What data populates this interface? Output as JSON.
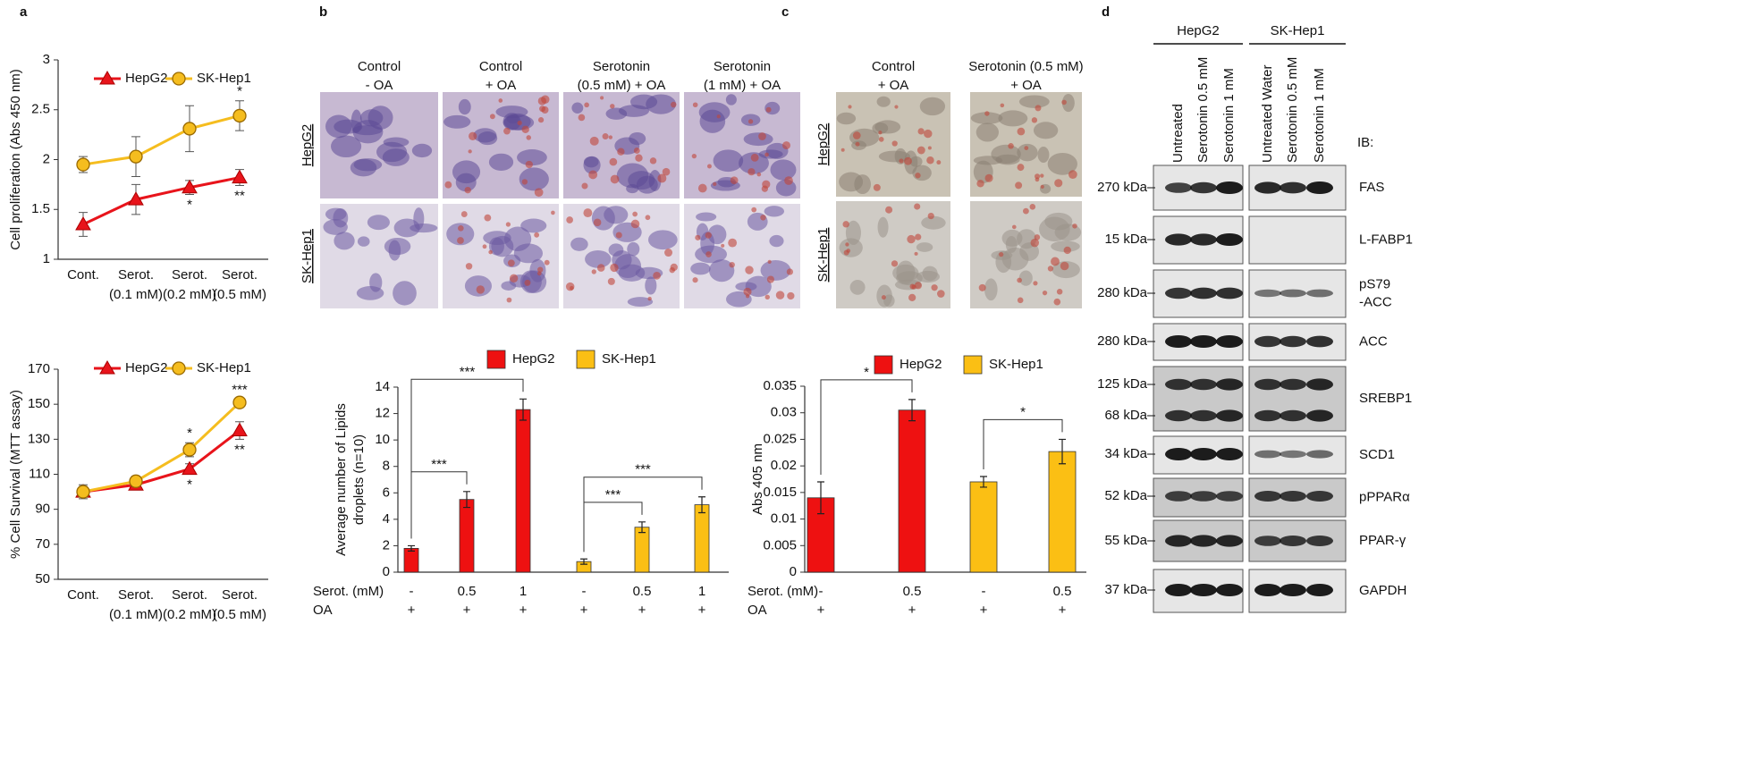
{
  "panel_labels": [
    "a",
    "b",
    "c",
    "d"
  ],
  "chart_data": [
    {
      "type": "line",
      "ylabel": [
        "Cell proliferation (Abs 450 nm)"
      ],
      "categories": [
        "Cont.",
        "Serot.",
        "Serot.",
        "Serot."
      ],
      "category_sublabels": [
        null,
        "(0.1 mM)",
        "(0.2 mM)",
        "(0.5 mM)"
      ],
      "series": [
        {
          "name": "HepG2",
          "color": "#e8141b",
          "marker": "triangle",
          "values": [
            1.35,
            1.6,
            1.72,
            1.82
          ],
          "errors": [
            0.12,
            0.15,
            0.07,
            0.08
          ]
        },
        {
          "name": "SK-Hep1",
          "color": "#f5bd1f",
          "marker": "circle",
          "values": [
            1.95,
            2.03,
            2.31,
            2.44
          ],
          "errors": [
            0.08,
            0.2,
            0.23,
            0.15
          ]
        }
      ],
      "ylim": [
        1,
        3
      ],
      "yticks": [
        1,
        1.5,
        2,
        2.5,
        3
      ],
      "annotations": [
        {
          "text": "*",
          "series": 1,
          "index": 3,
          "side": "above"
        },
        {
          "text": "*",
          "series": 0,
          "index": 2,
          "side": "below"
        },
        {
          "text": "**",
          "series": 0,
          "index": 3,
          "side": "below"
        }
      ]
    },
    {
      "type": "line",
      "ylabel": [
        "% Cell Survival (MTT assay)"
      ],
      "categories": [
        "Cont.",
        "Serot.",
        "Serot.",
        "Serot."
      ],
      "category_sublabels": [
        null,
        "(0.1 mM)",
        "(0.2 mM)",
        "(0.5 mM)"
      ],
      "series": [
        {
          "name": "HepG2",
          "color": "#e8141b",
          "marker": "triangle",
          "values": [
            100,
            104,
            113,
            135
          ],
          "errors": [
            3,
            2,
            3,
            5
          ]
        },
        {
          "name": "SK-Hep1",
          "color": "#f5bd1f",
          "marker": "circle",
          "values": [
            100,
            106,
            124,
            151
          ],
          "errors": [
            4,
            3,
            4,
            2
          ]
        }
      ],
      "ylim": [
        50,
        170
      ],
      "yticks": [
        50,
        70,
        90,
        110,
        130,
        150,
        170
      ],
      "annotations": [
        {
          "text": "*",
          "series": 1,
          "index": 2,
          "side": "above"
        },
        {
          "text": "***",
          "series": 1,
          "index": 3,
          "side": "above"
        },
        {
          "text": "*",
          "series": 0,
          "index": 2,
          "side": "below"
        },
        {
          "text": "**",
          "series": 0,
          "index": 3,
          "side": "below"
        }
      ]
    },
    {
      "type": "bar",
      "ylabel": [
        "Average number of Lipids",
        "droplets (n=10)"
      ],
      "row_labels": [
        "Serot. (mM)",
        "OA"
      ],
      "categories": [
        "-",
        "0.5",
        "1",
        "-",
        "0.5",
        "1"
      ],
      "second_row": [
        "+",
        "+",
        "+",
        "+",
        "+",
        "+"
      ],
      "series": [
        {
          "name": "HepG2",
          "color": "#ee1111",
          "values": [
            1.8,
            5.5,
            12.3,
            null,
            null,
            null
          ],
          "errors": [
            0.2,
            0.6,
            0.8,
            null,
            null,
            null
          ]
        },
        {
          "name": "SK-Hep1",
          "color": "#fbbf14",
          "values": [
            null,
            null,
            null,
            0.8,
            3.4,
            5.1
          ],
          "errors": [
            null,
            null,
            null,
            0.2,
            0.4,
            0.6
          ]
        }
      ],
      "ylim": [
        0,
        14
      ],
      "yticks": [
        0,
        2,
        4,
        6,
        8,
        10,
        12,
        14
      ],
      "brackets": [
        {
          "text": "***",
          "from": 0,
          "to": 1
        },
        {
          "text": "***",
          "from": 0,
          "to": 2
        },
        {
          "text": "***",
          "from": 3,
          "to": 4
        },
        {
          "text": "***",
          "from": 3,
          "to": 5
        }
      ]
    },
    {
      "type": "bar",
      "ylabel": [
        "Abs 405 nm"
      ],
      "row_labels": [
        "Serot. (mM)",
        "OA"
      ],
      "categories": [
        "-",
        "0.5",
        "-",
        "0.5"
      ],
      "second_row": [
        "+",
        "+",
        "+",
        "+"
      ],
      "series": [
        {
          "name": "HepG2",
          "color": "#ee1111",
          "values": [
            0.014,
            0.0305,
            null,
            null
          ],
          "errors": [
            0.003,
            0.002,
            null,
            null
          ]
        },
        {
          "name": "SK-Hep1",
          "color": "#fbbf14",
          "values": [
            null,
            null,
            0.017,
            0.0227
          ],
          "errors": [
            null,
            null,
            0.001,
            0.0023
          ]
        }
      ],
      "ylim": [
        0,
        0.035
      ],
      "yticks": [
        0,
        0.005,
        0.01,
        0.015,
        0.02,
        0.025,
        0.03,
        0.035
      ],
      "brackets": [
        {
          "text": "*",
          "from": 0,
          "to": 1
        },
        {
          "text": "*",
          "from": 2,
          "to": 3
        }
      ]
    }
  ],
  "micrographs_b": {
    "columns": [
      [
        "Control",
        "- OA"
      ],
      [
        "Control",
        "+ OA"
      ],
      [
        "Serotonin",
        "(0.5 mM) + OA"
      ],
      [
        "Serotonin",
        "(1 mM) + OA"
      ]
    ],
    "rows": [
      "HepG2",
      "SK-Hep1"
    ]
  },
  "micrographs_c": {
    "columns": [
      [
        "Control",
        "+ OA"
      ],
      [
        "Serotonin (0.5 mM)",
        "+ OA"
      ]
    ],
    "rows": [
      "HepG2",
      "SK-Hep1"
    ]
  },
  "western_blot": {
    "groups": [
      "HepG2",
      "SK-Hep1"
    ],
    "lanes": [
      "Untreated",
      "Serotonin 0.5 mM",
      "Serotonin 1 mM",
      "Untreated Water",
      "Serotonin 0.5 mM",
      "Serotonin 1 mM"
    ],
    "ib_label": "IB:",
    "rows": [
      {
        "markers": [
          "270 kDa"
        ],
        "protein": [
          "FAS"
        ]
      },
      {
        "markers": [
          "15 kDa"
        ],
        "protein": [
          "L-FABP1"
        ]
      },
      {
        "markers": [
          "280 kDa"
        ],
        "protein": [
          "pS79",
          "-ACC"
        ]
      },
      {
        "markers": [
          "280 kDa"
        ],
        "protein": [
          "ACC"
        ]
      },
      {
        "markers": [
          "125 kDa",
          "68 kDa"
        ],
        "protein": [
          "SREBP1"
        ]
      },
      {
        "markers": [
          "34 kDa"
        ],
        "protein": [
          "SCD1"
        ]
      },
      {
        "markers": [
          "52 kDa"
        ],
        "protein": [
          "pPPARα"
        ]
      },
      {
        "markers": [
          "55 kDa"
        ],
        "protein": [
          "PPAR-γ"
        ]
      },
      {
        "markers": [
          "37 kDa"
        ],
        "protein": [
          "GAPDH"
        ]
      }
    ]
  }
}
